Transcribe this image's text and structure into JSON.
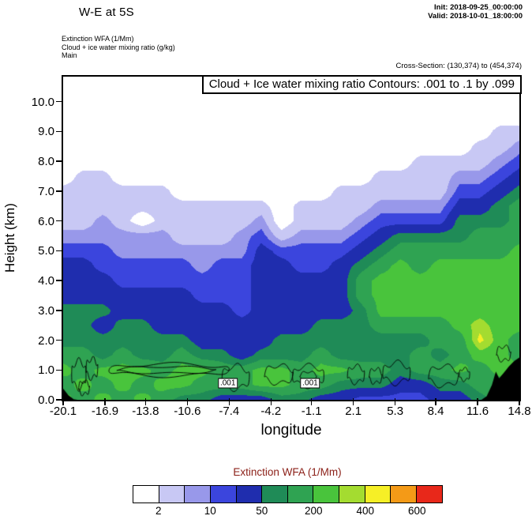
{
  "header": {
    "title": "W-E at 5S",
    "init_line": "Init: 2018-09-25_00:00:00",
    "valid_line": "Valid: 2018-10-01_18:00:00",
    "sub_lines": [
      "Extinction WFA  (1/Mm)",
      "Cloud + ice water mixing ratio  (g/kg)",
      "Main"
    ],
    "cross_section": "Cross-Section: (130,374) to (454,374)"
  },
  "plot": {
    "contour_note": "Cloud + Ice water mixing ratio Contours: .001 to .1 by .099"
  },
  "colorbar": {
    "title": "Extinction WFA  (1/Mm)",
    "title_color": "#8b1f17",
    "labels": [
      "2",
      "10",
      "50",
      "200",
      "400",
      "600"
    ],
    "label_boundary_index": [
      1,
      3,
      5,
      7,
      9,
      11
    ],
    "colors": [
      "#ffffff",
      "#c8c8f4",
      "#9898ea",
      "#3b45dd",
      "#1f2dae",
      "#1f8b57",
      "#2fa352",
      "#49c43c",
      "#a4dc30",
      "#f6ef26",
      "#f49a17",
      "#e8281a"
    ]
  },
  "chart_data": {
    "type": "filled_contour",
    "title": "Cloud + Ice water mixing ratio Contours: .001 to .1 by .099",
    "xlabel": "longitude",
    "ylabel": "Height (km)",
    "values_unit": "1/Mm",
    "xlim": [
      -20.1,
      14.8
    ],
    "ylim": [
      0,
      10.84
    ],
    "x_tick_labels": [
      "-20.1",
      "-16.9",
      "-13.8",
      "-10.6",
      "-7.4",
      "-4.2",
      "-1.1",
      "2.1",
      "5.3",
      "8.4",
      "11.6",
      "14.8"
    ],
    "y_tick_labels": [
      "0.0",
      "1.0",
      "2.0",
      "3.0",
      "4.0",
      "5.0",
      "6.0",
      "7.0",
      "8.0",
      "9.0",
      "10.0"
    ],
    "levels": [
      2,
      5,
      10,
      20,
      50,
      100,
      200,
      300,
      400,
      500,
      600
    ],
    "x_values": [
      -20.1,
      -18.58,
      -17.07,
      -15.55,
      -14.03,
      -12.52,
      -11.0,
      -9.49,
      -7.97,
      -6.45,
      -4.94,
      -3.42,
      -1.9,
      -0.39,
      1.13,
      2.64,
      4.16,
      5.68,
      7.19,
      8.71,
      10.23,
      11.74,
      13.26,
      14.8
    ],
    "y_values": [
      0,
      0.5,
      1.0,
      1.5,
      2.0,
      2.5,
      3.0,
      3.5,
      4.0,
      4.5,
      5.0,
      5.5,
      6.0,
      6.5,
      7.0,
      7.5,
      8.0,
      8.5,
      9.0,
      9.5,
      10.0,
      10.5
    ],
    "grid": [
      [
        250,
        150,
        250,
        150,
        250,
        150,
        70,
        70,
        30,
        30,
        30,
        70,
        70,
        30,
        30,
        14,
        14,
        14,
        14,
        30,
        30,
        70,
        150,
        250
      ],
      [
        150,
        250,
        150,
        250,
        150,
        250,
        250,
        150,
        150,
        150,
        250,
        250,
        150,
        150,
        70,
        70,
        70,
        30,
        30,
        70,
        70,
        150,
        150,
        250
      ],
      [
        250,
        150,
        250,
        250,
        250,
        150,
        250,
        250,
        150,
        150,
        250,
        250,
        150,
        250,
        250,
        150,
        150,
        70,
        150,
        150,
        250,
        150,
        250,
        250
      ],
      [
        150,
        150,
        70,
        150,
        70,
        70,
        150,
        70,
        70,
        30,
        70,
        70,
        70,
        150,
        70,
        70,
        70,
        70,
        150,
        70,
        150,
        250,
        250,
        150
      ],
      [
        70,
        70,
        70,
        70,
        70,
        70,
        70,
        30,
        30,
        30,
        30,
        70,
        70,
        70,
        70,
        70,
        70,
        70,
        70,
        150,
        150,
        450,
        250,
        150
      ],
      [
        70,
        70,
        30,
        70,
        70,
        30,
        30,
        30,
        30,
        30,
        30,
        30,
        30,
        70,
        70,
        70,
        150,
        150,
        150,
        150,
        250,
        350,
        250,
        250
      ],
      [
        70,
        70,
        70,
        30,
        30,
        30,
        30,
        30,
        30,
        14,
        30,
        30,
        30,
        30,
        30,
        70,
        250,
        250,
        250,
        250,
        250,
        250,
        250,
        250
      ],
      [
        30,
        30,
        30,
        30,
        30,
        30,
        30,
        14,
        14,
        14,
        30,
        30,
        30,
        30,
        30,
        150,
        250,
        250,
        250,
        250,
        250,
        250,
        250,
        250
      ],
      [
        30,
        30,
        30,
        14,
        14,
        14,
        14,
        14,
        14,
        14,
        30,
        30,
        30,
        30,
        30,
        150,
        250,
        250,
        250,
        250,
        250,
        250,
        250,
        250
      ],
      [
        30,
        30,
        14,
        14,
        14,
        14,
        14,
        7,
        14,
        14,
        30,
        30,
        14,
        14,
        30,
        70,
        150,
        250,
        150,
        250,
        250,
        250,
        250,
        250
      ],
      [
        14,
        14,
        14,
        7,
        7,
        7,
        7,
        7,
        7,
        7,
        30,
        14,
        14,
        14,
        14,
        30,
        70,
        150,
        150,
        150,
        150,
        150,
        150,
        250
      ],
      [
        7,
        7,
        7,
        7,
        7,
        7,
        3,
        3,
        3,
        7,
        14,
        3,
        7,
        7,
        7,
        14,
        30,
        70,
        70,
        70,
        70,
        150,
        150,
        150
      ],
      [
        3,
        3,
        7,
        3,
        1,
        3,
        3,
        3,
        3,
        3,
        7,
        1,
        3,
        3,
        3,
        7,
        14,
        14,
        14,
        14,
        70,
        70,
        70,
        150
      ],
      [
        3,
        3,
        3,
        3,
        3,
        3,
        3,
        3,
        3,
        3,
        3,
        1,
        3,
        3,
        3,
        3,
        7,
        7,
        7,
        7,
        30,
        30,
        70,
        150
      ],
      [
        3,
        3,
        3,
        3,
        3,
        3,
        1,
        1,
        1,
        1,
        1,
        1,
        1,
        1,
        3,
        3,
        3,
        3,
        3,
        3,
        14,
        14,
        30,
        70
      ],
      [
        1,
        3,
        3,
        1,
        1,
        1,
        1,
        1,
        1,
        1,
        1,
        1,
        1,
        1,
        1,
        1,
        3,
        3,
        3,
        3,
        7,
        7,
        14,
        30
      ],
      [
        1,
        1,
        1,
        1,
        1,
        1,
        1,
        1,
        1,
        1,
        1,
        1,
        1,
        1,
        1,
        1,
        1,
        1,
        3,
        3,
        3,
        3,
        7,
        14
      ],
      [
        1,
        1,
        1,
        1,
        1,
        1,
        1,
        1,
        1,
        1,
        1,
        1,
        1,
        1,
        1,
        1,
        1,
        1,
        1,
        1,
        1,
        3,
        3,
        7
      ],
      [
        1,
        1,
        1,
        1,
        1,
        1,
        1,
        1,
        1,
        1,
        1,
        1,
        1,
        1,
        1,
        1,
        1,
        1,
        1,
        1,
        1,
        1,
        3,
        3
      ],
      [
        1,
        1,
        1,
        1,
        1,
        1,
        1,
        1,
        1,
        1,
        1,
        1,
        1,
        1,
        1,
        1,
        1,
        1,
        1,
        1,
        1,
        1,
        1,
        1
      ],
      [
        1,
        1,
        1,
        1,
        1,
        1,
        1,
        1,
        1,
        1,
        1,
        1,
        1,
        1,
        1,
        1,
        1,
        1,
        1,
        1,
        1,
        1,
        1,
        1
      ],
      [
        1,
        1,
        1,
        1,
        1,
        1,
        1,
        1,
        1,
        1,
        1,
        1,
        1,
        1,
        1,
        1,
        1,
        1,
        1,
        1,
        1,
        1,
        1,
        1
      ]
    ],
    "terrain_profile": [
      [
        -20.1,
        0.38
      ],
      [
        -19.7,
        0.15
      ],
      [
        -19.3,
        0.02
      ],
      [
        -19.0,
        0.0
      ],
      [
        11.9,
        0.0
      ],
      [
        12.3,
        0.12
      ],
      [
        12.7,
        0.5
      ],
      [
        13.0,
        0.95
      ],
      [
        13.25,
        0.72
      ],
      [
        13.6,
        0.9
      ],
      [
        14.0,
        1.12
      ],
      [
        14.4,
        1.3
      ],
      [
        14.8,
        1.42
      ]
    ],
    "cloud_contour_loops": [
      {
        "cx": -18.9,
        "cy": 0.85,
        "rx": 0.55,
        "ry": 0.45,
        "w": 0.12,
        "p": 0
      },
      {
        "cx": -17.9,
        "cy": 1.05,
        "rx": 0.45,
        "ry": 0.32,
        "w": 0.1,
        "p": 1.3
      },
      {
        "cx": -18.5,
        "cy": 0.4,
        "rx": 0.42,
        "ry": 0.22,
        "w": 0.07,
        "p": 2.1
      },
      {
        "cx": -12.0,
        "cy": 1.0,
        "rx": 4.6,
        "ry": 0.2,
        "w": 0.06,
        "p": 0.5
      },
      {
        "cx": -12.2,
        "cy": 1.0,
        "rx": 3.8,
        "ry": 0.11,
        "w": 0.03,
        "p": 2.6
      },
      {
        "cx": -6.9,
        "cy": 0.75,
        "rx": 1.05,
        "ry": 0.38,
        "w": 0.1,
        "p": 0.8
      },
      {
        "cx": -3.6,
        "cy": 0.85,
        "rx": 1.1,
        "ry": 0.3,
        "w": 0.08,
        "p": 1.9
      },
      {
        "cx": -1.35,
        "cy": 0.8,
        "rx": 1.2,
        "ry": 0.34,
        "w": 0.09,
        "p": 0.2
      },
      {
        "cx": -1.35,
        "cy": 0.78,
        "rx": 0.65,
        "ry": 0.16,
        "w": 0.04,
        "p": 2.9
      },
      {
        "cx": 2.3,
        "cy": 0.85,
        "rx": 0.65,
        "ry": 0.28,
        "w": 0.08,
        "p": 1.1
      },
      {
        "cx": 3.8,
        "cy": 0.8,
        "rx": 0.5,
        "ry": 0.24,
        "w": 0.07,
        "p": 2.4
      },
      {
        "cx": 5.4,
        "cy": 0.9,
        "rx": 1.05,
        "ry": 0.34,
        "w": 0.1,
        "p": 0.6
      },
      {
        "cx": 9.0,
        "cy": 0.8,
        "rx": 1.15,
        "ry": 0.33,
        "w": 0.09,
        "p": 1.7
      },
      {
        "cx": 10.6,
        "cy": 0.85,
        "rx": 0.4,
        "ry": 0.2,
        "w": 0.05,
        "p": 0.9
      },
      {
        "cx": 13.6,
        "cy": 1.55,
        "rx": 0.55,
        "ry": 0.24,
        "w": 0.07,
        "p": 2.2
      }
    ],
    "contour_labels": [
      {
        "text": ".001",
        "lon": -7.5,
        "km": 0.55
      },
      {
        "text": ".001",
        "lon": -1.2,
        "km": 0.55
      }
    ]
  }
}
